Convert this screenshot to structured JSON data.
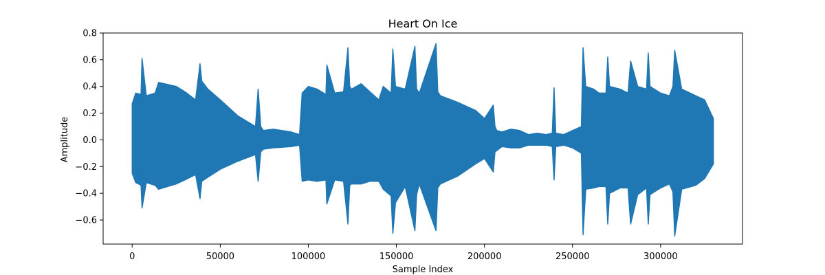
{
  "chart_data": {
    "type": "line",
    "title": "Heart On Ice",
    "xlabel": "Sample Index",
    "ylabel": "Amplitude",
    "xlim": [
      -16500,
      346500
    ],
    "ylim": [
      -0.78,
      0.8
    ],
    "xticks": [
      0,
      50000,
      100000,
      150000,
      200000,
      250000,
      300000
    ],
    "yticks": [
      -0.6,
      -0.4,
      -0.2,
      0.0,
      0.2,
      0.4,
      0.6,
      0.8
    ],
    "xtick_labels": [
      "0",
      "50000",
      "100000",
      "150000",
      "200000",
      "250000",
      "300000"
    ],
    "ytick_labels": [
      "−0.6",
      "−0.4",
      "−0.2",
      "0.0",
      "0.2",
      "0.4",
      "0.6",
      "0.8"
    ],
    "grid": false,
    "legend": "none",
    "series_color": "#1f77b4",
    "series": [
      {
        "x": [
          0,
          2000,
          5000,
          5600,
          8000,
          13000,
          15000,
          25000,
          30000,
          36000,
          38500,
          39500,
          43000,
          50000,
          60000,
          70000,
          71500,
          73000,
          74500,
          80000,
          90000,
          95000,
          96500,
          100000,
          105000,
          110000,
          110500,
          115000,
          120000,
          122500,
          123500,
          124500,
          130000,
          135000,
          140000,
          142500,
          147000,
          148000,
          149500,
          155000,
          160500,
          161500,
          163000,
          172500,
          173500,
          175000,
          185000,
          195000,
          200000,
          205000,
          206000,
          207000,
          210000,
          215000,
          220000,
          225000,
          230000,
          235000,
          238500,
          239500,
          240500,
          245000,
          250000,
          255000,
          256000,
          257500,
          262000,
          265000,
          269000,
          270000,
          271000,
          277000,
          281500,
          283000,
          287000,
          292000,
          293000,
          294000,
          300000,
          305000,
          307000,
          308000,
          312000,
          320000,
          325000,
          330000
        ],
        "y_max": [
          0.27,
          0.35,
          0.34,
          0.61,
          0.33,
          0.35,
          0.43,
          0.4,
          0.36,
          0.3,
          0.57,
          0.44,
          0.38,
          0.3,
          0.18,
          0.1,
          0.38,
          0.1,
          0.07,
          0.08,
          0.06,
          0.04,
          0.35,
          0.4,
          0.38,
          0.34,
          0.56,
          0.35,
          0.36,
          0.69,
          0.4,
          0.38,
          0.42,
          0.36,
          0.3,
          0.4,
          0.35,
          0.68,
          0.4,
          0.38,
          0.7,
          0.38,
          0.35,
          0.72,
          0.36,
          0.33,
          0.28,
          0.22,
          0.16,
          0.26,
          0.1,
          0.07,
          0.06,
          0.08,
          0.07,
          0.04,
          0.05,
          0.04,
          0.05,
          0.39,
          0.05,
          0.04,
          0.07,
          0.1,
          0.69,
          0.4,
          0.38,
          0.35,
          0.35,
          0.62,
          0.4,
          0.38,
          0.35,
          0.59,
          0.4,
          0.38,
          0.65,
          0.4,
          0.35,
          0.33,
          0.4,
          0.67,
          0.38,
          0.33,
          0.3,
          0.16
        ],
        "y_min": [
          -0.25,
          -0.32,
          -0.34,
          -0.51,
          -0.32,
          -0.34,
          -0.37,
          -0.33,
          -0.3,
          -0.26,
          -0.44,
          -0.31,
          -0.28,
          -0.22,
          -0.16,
          -0.11,
          -0.31,
          -0.09,
          -0.07,
          -0.06,
          -0.05,
          -0.04,
          -0.31,
          -0.3,
          -0.31,
          -0.3,
          -0.48,
          -0.3,
          -0.31,
          -0.63,
          -0.34,
          -0.33,
          -0.33,
          -0.31,
          -0.31,
          -0.37,
          -0.42,
          -0.7,
          -0.47,
          -0.35,
          -0.68,
          -0.41,
          -0.33,
          -0.68,
          -0.36,
          -0.33,
          -0.27,
          -0.18,
          -0.14,
          -0.24,
          -0.09,
          -0.08,
          -0.05,
          -0.06,
          -0.06,
          -0.04,
          -0.04,
          -0.04,
          -0.05,
          -0.3,
          -0.05,
          -0.04,
          -0.06,
          -0.1,
          -0.71,
          -0.37,
          -0.36,
          -0.35,
          -0.35,
          -0.63,
          -0.4,
          -0.36,
          -0.36,
          -0.63,
          -0.41,
          -0.36,
          -0.63,
          -0.41,
          -0.36,
          -0.33,
          -0.39,
          -0.72,
          -0.37,
          -0.34,
          -0.29,
          -0.18
        ]
      }
    ]
  }
}
